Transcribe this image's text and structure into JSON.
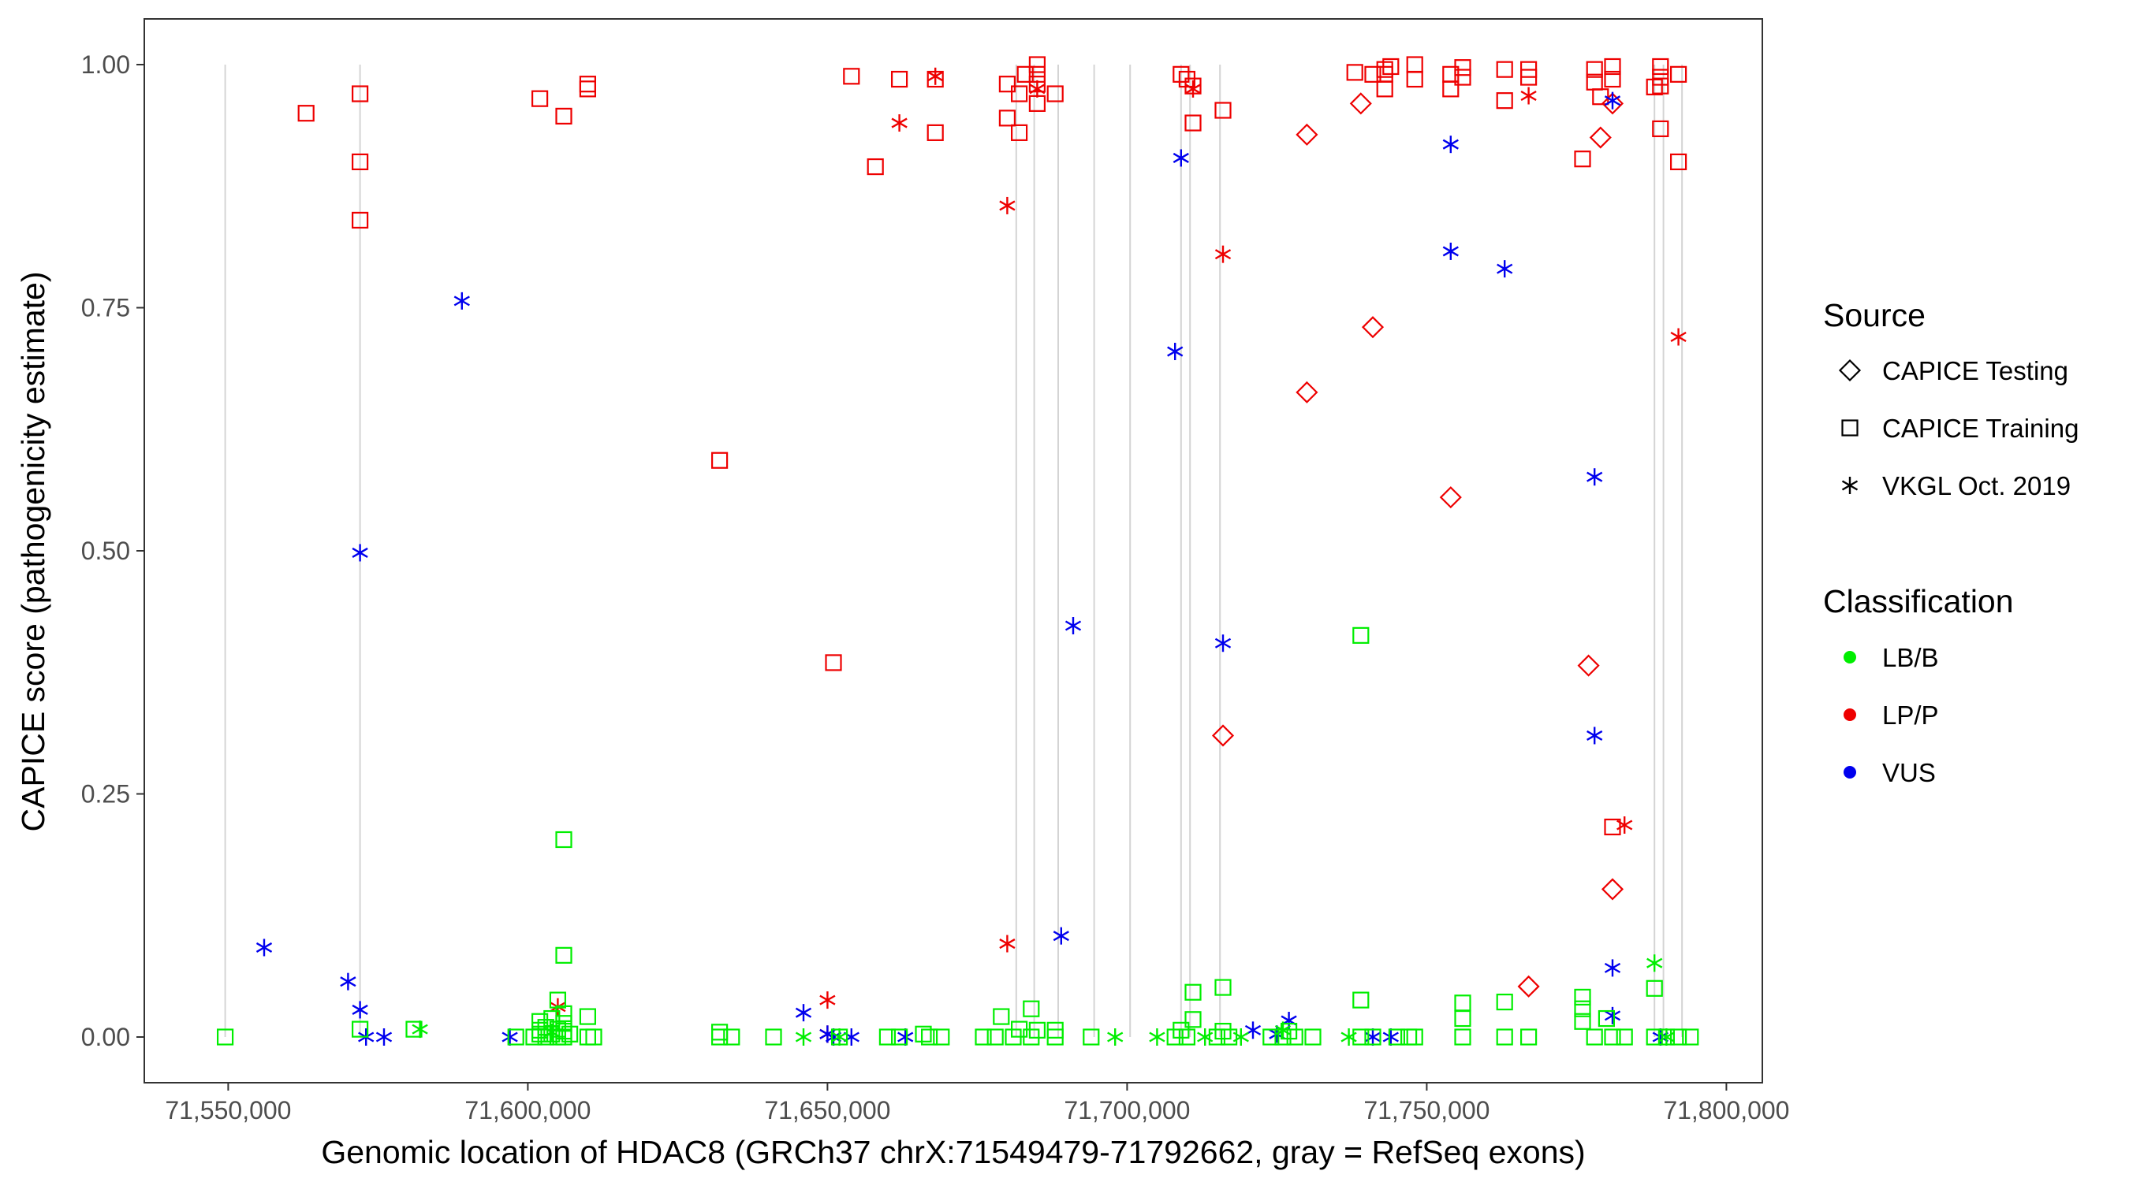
{
  "chart_data": {
    "type": "scatter",
    "title": "",
    "xlabel": "Genomic location of HDAC8 (GRCh37 chrX:71549479-71792662, gray = RefSeq exons)",
    "ylabel": "CAPICE score (pathogenicity estimate)",
    "xlim": [
      71536000,
      71806000
    ],
    "ylim": [
      -0.047,
      1.047
    ],
    "x_ticks": [
      71550000,
      71600000,
      71650000,
      71700000,
      71750000,
      71800000
    ],
    "x_tick_labels": [
      "71,550,000",
      "71,600,000",
      "71,650,000",
      "71,700,000",
      "71,750,000",
      "71,800,000"
    ],
    "y_ticks": [
      0,
      0.25,
      0.5,
      0.75,
      1.0
    ],
    "y_tick_labels": [
      "0.00",
      "0.25",
      "0.50",
      "0.75",
      "1.00"
    ],
    "exons": [
      71549500,
      71572000,
      71681500,
      71684500,
      71688500,
      71694500,
      71700500,
      71709000,
      71710500,
      71715500,
      71788000,
      71789500,
      71792600
    ],
    "legend": {
      "source": {
        "title": "Source",
        "items": [
          {
            "label": "CAPICE Testing",
            "shape": "diamond"
          },
          {
            "label": "CAPICE Training",
            "shape": "square"
          },
          {
            "label": "VKGL Oct. 2019",
            "shape": "asterisk"
          }
        ]
      },
      "classification": {
        "title": "Classification",
        "items": [
          {
            "label": "LB/B",
            "color": "#00ee00"
          },
          {
            "label": "LP/P",
            "color": "#ee0000"
          },
          {
            "label": "VUS",
            "color": "#0000ee"
          }
        ]
      }
    },
    "series": [
      {
        "name": "CAPICE Training - LP/P",
        "shape": "square",
        "class": "LP/P",
        "points": [
          [
            71563000,
            0.95
          ],
          [
            71572000,
            0.97
          ],
          [
            71572000,
            0.9
          ],
          [
            71572000,
            0.84
          ],
          [
            71602000,
            0.965
          ],
          [
            71606000,
            0.947
          ],
          [
            71610000,
            0.98
          ],
          [
            71610000,
            0.975
          ],
          [
            71632000,
            0.593
          ],
          [
            71651000,
            0.385
          ],
          [
            71654000,
            0.988
          ],
          [
            71658000,
            0.895
          ],
          [
            71662000,
            0.985
          ],
          [
            71668000,
            0.985
          ],
          [
            71668000,
            0.93
          ],
          [
            71680000,
            0.98
          ],
          [
            71680000,
            0.945
          ],
          [
            71682000,
            0.93
          ],
          [
            71682000,
            0.97
          ],
          [
            71683000,
            0.99
          ],
          [
            71685000,
            1.0
          ],
          [
            71685000,
            0.99
          ],
          [
            71685000,
            0.98
          ],
          [
            71685000,
            0.96
          ],
          [
            71688000,
            0.97
          ],
          [
            71709000,
            0.99
          ],
          [
            71710000,
            0.985
          ],
          [
            71711000,
            0.978
          ],
          [
            71711000,
            0.94
          ],
          [
            71716000,
            0.953
          ],
          [
            71738000,
            0.992
          ],
          [
            71741000,
            0.99
          ],
          [
            71743000,
            0.995
          ],
          [
            71743000,
            0.99
          ],
          [
            71743000,
            0.975
          ],
          [
            71744000,
            0.998
          ],
          [
            71748000,
            1.0
          ],
          [
            71748000,
            0.985
          ],
          [
            71754000,
            0.99
          ],
          [
            71754000,
            0.975
          ],
          [
            71756000,
            0.997
          ],
          [
            71756000,
            0.987
          ],
          [
            71763000,
            0.995
          ],
          [
            71763000,
            0.963
          ],
          [
            71767000,
            0.995
          ],
          [
            71767000,
            0.987
          ],
          [
            71776000,
            0.903
          ],
          [
            71778000,
            0.995
          ],
          [
            71778000,
            0.982
          ],
          [
            71779000,
            0.967
          ],
          [
            71781000,
            0.998
          ],
          [
            71781000,
            0.985
          ],
          [
            71781000,
            0.216
          ],
          [
            71788000,
            0.977
          ],
          [
            71789000,
            0.998
          ],
          [
            71789000,
            0.987
          ],
          [
            71789000,
            0.978
          ],
          [
            71789000,
            0.934
          ],
          [
            71792000,
            0.99
          ],
          [
            71792000,
            0.9
          ]
        ]
      },
      {
        "name": "VKGL Oct. 2019 - LP/P",
        "shape": "asterisk",
        "class": "LP/P",
        "points": [
          [
            71605000,
            0.031
          ],
          [
            71650000,
            0.038
          ],
          [
            71650000,
            0.003
          ],
          [
            71662000,
            0.94
          ],
          [
            71668000,
            0.988
          ],
          [
            71680000,
            0.855
          ],
          [
            71680000,
            0.096
          ],
          [
            71685000,
            0.975
          ],
          [
            71711000,
            0.975
          ],
          [
            71716000,
            0.805
          ],
          [
            71767000,
            0.968
          ],
          [
            71783000,
            0.218
          ],
          [
            71792000,
            0.72
          ]
        ]
      },
      {
        "name": "CAPICE Testing - LP/P",
        "shape": "diamond",
        "class": "LP/P",
        "points": [
          [
            71716000,
            0.31
          ],
          [
            71730000,
            0.928
          ],
          [
            71730000,
            0.663
          ],
          [
            71739000,
            0.96
          ],
          [
            71741000,
            0.73
          ],
          [
            71754000,
            0.555
          ],
          [
            71767000,
            0.052
          ],
          [
            71777000,
            0.382
          ],
          [
            71779000,
            0.925
          ],
          [
            71781000,
            0.152
          ],
          [
            71781000,
            0.96
          ]
        ]
      },
      {
        "name": "VKGL Oct. 2019 - VUS",
        "shape": "asterisk",
        "class": "VUS",
        "points": [
          [
            71556000,
            0.092
          ],
          [
            71570000,
            0.057
          ],
          [
            71572000,
            0.498
          ],
          [
            71572000,
            0.028
          ],
          [
            71573000,
            0.0
          ],
          [
            71576000,
            0.0
          ],
          [
            71589000,
            0.757
          ],
          [
            71597000,
            0.0
          ],
          [
            71646000,
            0.025
          ],
          [
            71650000,
            0.003
          ],
          [
            71651000,
            0.0
          ],
          [
            71654000,
            0.0
          ],
          [
            71663000,
            0.0
          ],
          [
            71689000,
            0.104
          ],
          [
            71691000,
            0.423
          ],
          [
            71708000,
            0.705
          ],
          [
            71709000,
            0.904
          ],
          [
            71716000,
            0.405
          ],
          [
            71721000,
            0.007
          ],
          [
            71725000,
            0.003
          ],
          [
            71727000,
            0.017
          ],
          [
            71741000,
            0.0
          ],
          [
            71744000,
            0.0
          ],
          [
            71754000,
            0.918
          ],
          [
            71754000,
            0.808
          ],
          [
            71763000,
            0.79
          ],
          [
            71778000,
            0.576
          ],
          [
            71778000,
            0.31
          ],
          [
            71781000,
            0.963
          ],
          [
            71781000,
            0.071
          ],
          [
            71781000,
            0.022
          ],
          [
            71789000,
            0.0
          ]
        ]
      },
      {
        "name": "CAPICE Training - LB/B",
        "shape": "square",
        "class": "LB/B",
        "points": [
          [
            71549500,
            0.0
          ],
          [
            71572000,
            0.008
          ],
          [
            71581000,
            0.008
          ],
          [
            71598000,
            0.0
          ],
          [
            71601000,
            0.0
          ],
          [
            71602000,
            0.003
          ],
          [
            71602000,
            0.007
          ],
          [
            71602000,
            0.016
          ],
          [
            71603000,
            0.0
          ],
          [
            71603000,
            0.01
          ],
          [
            71604000,
            0.003
          ],
          [
            71604000,
            0.019
          ],
          [
            71605000,
            0.0
          ],
          [
            71605000,
            0.008
          ],
          [
            71605000,
            0.038
          ],
          [
            71606000,
            0.0
          ],
          [
            71606000,
            0.006
          ],
          [
            71606000,
            0.014
          ],
          [
            71606000,
            0.024
          ],
          [
            71606000,
            0.084
          ],
          [
            71606000,
            0.203
          ],
          [
            71607000,
            0.003
          ],
          [
            71610000,
            0.0
          ],
          [
            71610000,
            0.021
          ],
          [
            71611000,
            0.0
          ],
          [
            71632000,
            0.0
          ],
          [
            71632000,
            0.005
          ],
          [
            71634000,
            0.0
          ],
          [
            71641000,
            0.0
          ],
          [
            71652000,
            0.0
          ],
          [
            71660000,
            0.0
          ],
          [
            71662000,
            0.0
          ],
          [
            71666000,
            0.003
          ],
          [
            71667000,
            0.0
          ],
          [
            71669000,
            0.0
          ],
          [
            71676000,
            0.0
          ],
          [
            71678000,
            0.0
          ],
          [
            71679000,
            0.021
          ],
          [
            71681000,
            0.0
          ],
          [
            71682000,
            0.008
          ],
          [
            71684000,
            0.0
          ],
          [
            71684000,
            0.029
          ],
          [
            71685000,
            0.007
          ],
          [
            71688000,
            0.0
          ],
          [
            71688000,
            0.007
          ],
          [
            71694000,
            0.0
          ],
          [
            71708000,
            0.0
          ],
          [
            71709000,
            0.007
          ],
          [
            71710000,
            0.0
          ],
          [
            71711000,
            0.046
          ],
          [
            71711000,
            0.018
          ],
          [
            71715000,
            0.0
          ],
          [
            71716000,
            0.051
          ],
          [
            71716000,
            0.006
          ],
          [
            71717000,
            0.0
          ],
          [
            71724000,
            0.0
          ],
          [
            71726000,
            0.0
          ],
          [
            71727000,
            0.006
          ],
          [
            71728000,
            0.0
          ],
          [
            71731000,
            0.0
          ],
          [
            71739000,
            0.413
          ],
          [
            71739000,
            0.038
          ],
          [
            71739000,
            0.0
          ],
          [
            71741000,
            0.0
          ],
          [
            71745000,
            0.0
          ],
          [
            71747000,
            0.0
          ],
          [
            71748000,
            0.0
          ],
          [
            71756000,
            0.035
          ],
          [
            71756000,
            0.019
          ],
          [
            71756000,
            0.0
          ],
          [
            71763000,
            0.036
          ],
          [
            71763000,
            0.0
          ],
          [
            71767000,
            0.0
          ],
          [
            71776000,
            0.041
          ],
          [
            71776000,
            0.029
          ],
          [
            71776000,
            0.016
          ],
          [
            71778000,
            0.0
          ],
          [
            71780000,
            0.019
          ],
          [
            71781000,
            0.0
          ],
          [
            71783000,
            0.0
          ],
          [
            71788000,
            0.05
          ],
          [
            71788000,
            0.0
          ],
          [
            71790000,
            0.0
          ],
          [
            71792000,
            0.0
          ],
          [
            71794000,
            0.0
          ]
        ]
      },
      {
        "name": "VKGL Oct. 2019 - LB/B",
        "shape": "asterisk",
        "class": "LB/B",
        "points": [
          [
            71582000,
            0.008
          ],
          [
            71604000,
            0.005
          ],
          [
            71646000,
            0.0
          ],
          [
            71652000,
            0.0
          ],
          [
            71698000,
            0.0
          ],
          [
            71705000,
            0.0
          ],
          [
            71713000,
            0.0
          ],
          [
            71719000,
            0.0
          ],
          [
            71726000,
            0.007
          ],
          [
            71737000,
            0.0
          ],
          [
            71788000,
            0.076
          ],
          [
            71790000,
            0.0
          ]
        ]
      }
    ]
  }
}
